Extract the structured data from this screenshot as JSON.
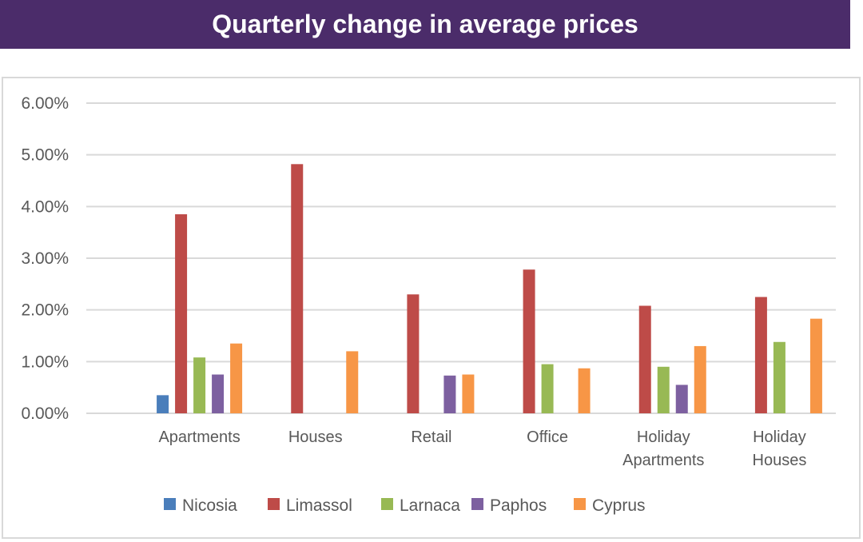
{
  "header": {
    "title": "Quarterly change in average prices"
  },
  "chart_data": {
    "type": "bar",
    "title": "Quarterly change in average prices",
    "xlabel": "",
    "ylabel": "",
    "ylim": [
      0,
      6
    ],
    "y_ticks": [
      "0.00%",
      "1.00%",
      "2.00%",
      "3.00%",
      "4.00%",
      "5.00%",
      "6.00%"
    ],
    "grid": true,
    "legend_position": "bottom",
    "categories": [
      [
        "Apartments"
      ],
      [
        "Houses"
      ],
      [
        "Retail"
      ],
      [
        "Office"
      ],
      [
        "Holiday",
        "Apartments"
      ],
      [
        "Holiday",
        "Houses"
      ]
    ],
    "series": [
      {
        "name": "Nicosia",
        "color": "#4a7ebb",
        "values": [
          0.35,
          null,
          null,
          null,
          null,
          null
        ]
      },
      {
        "name": "Limassol",
        "color": "#be4b48",
        "values": [
          3.85,
          4.82,
          2.3,
          2.78,
          2.08,
          2.25
        ]
      },
      {
        "name": "Larnaca",
        "color": "#98b954",
        "values": [
          1.08,
          null,
          null,
          0.95,
          0.9,
          1.38
        ]
      },
      {
        "name": "Paphos",
        "color": "#7d60a0",
        "values": [
          0.75,
          null,
          0.73,
          null,
          0.55,
          null
        ]
      },
      {
        "name": "Cyprus",
        "color": "#f79646",
        "values": [
          1.35,
          1.2,
          0.75,
          0.87,
          1.3,
          1.83
        ]
      }
    ]
  }
}
